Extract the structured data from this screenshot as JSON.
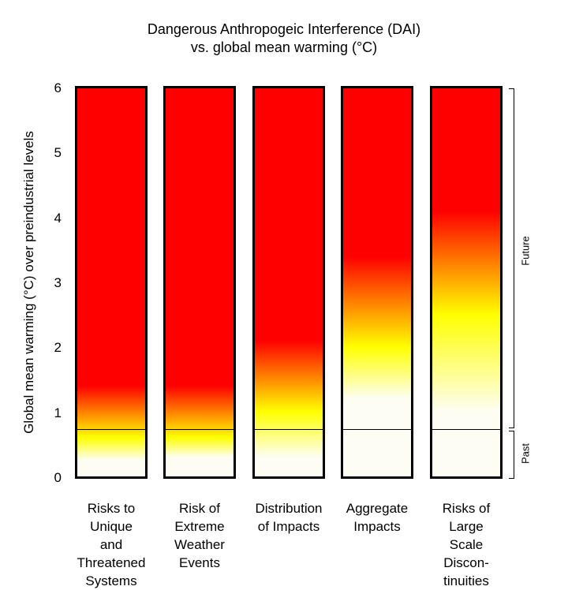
{
  "chart_data": {
    "type": "table",
    "title": "Dangerous Anthropogeic Interference (DAI)",
    "subtitle": "vs. global mean warming (°C)",
    "ylabel": "Global mean warming (°C) over preindustrial levels",
    "ylim": [
      0,
      6
    ],
    "yticks": [
      "0",
      "1",
      "2",
      "3",
      "4",
      "5",
      "6"
    ],
    "past_future_boundary": 0.75,
    "periods": [
      "Past",
      "Future"
    ],
    "color_scale": {
      "low": "#fdfdf3",
      "mid": "#ffff00",
      "high": "#ff0000"
    },
    "categories": [
      {
        "label": "Risks to\nUnique\nand\nThreatened\nSystems",
        "transitions": {
          "white_to_yellow": 0.25,
          "yellow": 0.6,
          "yellow_to_red": 1.4
        }
      },
      {
        "label": "Risk of\nExtreme\nWeather\nEvents",
        "transitions": {
          "white_to_yellow": 0.3,
          "yellow": 0.6,
          "yellow_to_red": 1.4
        }
      },
      {
        "label": "Distribution\nof Impacts",
        "transitions": {
          "white_to_yellow": 0.3,
          "yellow": 1.0,
          "yellow_to_red": 2.1
        }
      },
      {
        "label": "Aggregate\nImpacts",
        "transitions": {
          "white_to_yellow": 1.2,
          "yellow": 2.0,
          "yellow_to_red": 3.4
        }
      },
      {
        "label": "Risks of\nLarge\nScale\nDiscon-\ntinuities",
        "transitions": {
          "white_to_yellow": 1.0,
          "yellow": 2.5,
          "yellow_to_red": 4.1
        }
      }
    ]
  }
}
